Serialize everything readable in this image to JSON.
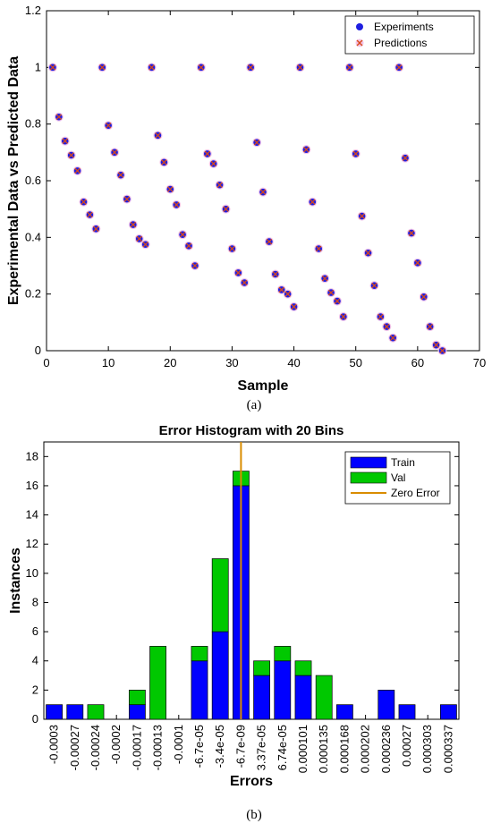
{
  "chart_data": [
    {
      "type": "scatter",
      "caption": "(a)",
      "title": "",
      "xlabel": "Sample",
      "ylabel": "Experimental Data vs Predicted Data",
      "xlim": [
        0,
        70
      ],
      "ylim": [
        0,
        1.2
      ],
      "xticks": [
        "0",
        "10",
        "20",
        "30",
        "40",
        "50",
        "60",
        "70"
      ],
      "yticks": [
        "0",
        "0.2",
        "0.4",
        "0.6",
        "0.8",
        "1",
        "1.2"
      ],
      "grid": false,
      "legend_position": "top-right",
      "colors": {
        "experiments": "#1f1fe0",
        "predictions": "#d94a1a",
        "predictions_halo": "#f2c4e8"
      },
      "series": [
        {
          "name": "Experiments",
          "marker": "circle",
          "x": [
            1,
            2,
            3,
            4,
            5,
            6,
            7,
            8,
            9,
            10,
            11,
            12,
            13,
            14,
            15,
            16,
            17,
            18,
            19,
            20,
            21,
            22,
            23,
            24,
            25,
            26,
            27,
            28,
            29,
            30,
            31,
            32,
            33,
            34,
            35,
            36,
            37,
            38,
            39,
            40,
            41,
            42,
            43,
            44,
            45,
            46,
            47,
            48,
            49,
            50,
            51,
            52,
            53,
            54,
            55,
            56,
            57,
            58,
            59,
            60,
            61,
            62,
            63,
            64
          ],
          "y": [
            1.0,
            0.825,
            0.74,
            0.69,
            0.635,
            0.525,
            0.48,
            0.43,
            1.0,
            0.795,
            0.7,
            0.62,
            0.535,
            0.445,
            0.395,
            0.375,
            1.0,
            0.76,
            0.665,
            0.57,
            0.515,
            0.41,
            0.37,
            0.3,
            1.0,
            0.695,
            0.66,
            0.585,
            0.5,
            0.36,
            0.275,
            0.24,
            1.0,
            0.735,
            0.56,
            0.385,
            0.27,
            0.215,
            0.2,
            0.155,
            1.0,
            0.71,
            0.525,
            0.36,
            0.255,
            0.205,
            0.175,
            0.12,
            1.0,
            0.695,
            0.475,
            0.345,
            0.23,
            0.12,
            0.085,
            0.045,
            1.0,
            0.68,
            0.415,
            0.31,
            0.19,
            0.085,
            0.02,
            0.0
          ]
        },
        {
          "name": "Predictions",
          "marker": "x",
          "x": [
            1,
            2,
            3,
            4,
            5,
            6,
            7,
            8,
            9,
            10,
            11,
            12,
            13,
            14,
            15,
            16,
            17,
            18,
            19,
            20,
            21,
            22,
            23,
            24,
            25,
            26,
            27,
            28,
            29,
            30,
            31,
            32,
            33,
            34,
            35,
            36,
            37,
            38,
            39,
            40,
            41,
            42,
            43,
            44,
            45,
            46,
            47,
            48,
            49,
            50,
            51,
            52,
            53,
            54,
            55,
            56,
            57,
            58,
            59,
            60,
            61,
            62,
            63,
            64
          ],
          "y": [
            1.0,
            0.825,
            0.74,
            0.69,
            0.635,
            0.525,
            0.48,
            0.43,
            1.0,
            0.795,
            0.7,
            0.62,
            0.535,
            0.445,
            0.395,
            0.375,
            1.0,
            0.76,
            0.665,
            0.57,
            0.515,
            0.41,
            0.37,
            0.3,
            1.0,
            0.695,
            0.66,
            0.585,
            0.5,
            0.36,
            0.275,
            0.24,
            1.0,
            0.735,
            0.56,
            0.385,
            0.27,
            0.215,
            0.2,
            0.155,
            1.0,
            0.71,
            0.525,
            0.36,
            0.255,
            0.205,
            0.175,
            0.12,
            1.0,
            0.695,
            0.475,
            0.345,
            0.23,
            0.12,
            0.085,
            0.045,
            1.0,
            0.68,
            0.415,
            0.31,
            0.19,
            0.085,
            0.02,
            0.0
          ]
        }
      ]
    },
    {
      "type": "bar",
      "stacked": true,
      "caption": "(b)",
      "title": "Error Histogram with 20 Bins",
      "xlabel": "Errors",
      "ylabel": "Instances",
      "ylim": [
        0,
        19
      ],
      "yticks": [
        "0",
        "2",
        "4",
        "6",
        "8",
        "10",
        "12",
        "14",
        "16",
        "18"
      ],
      "grid": false,
      "legend_position": "top-right",
      "categories": [
        "-0.0003",
        "-0.00027",
        "-0.00024",
        "-0.0002",
        "-0.00017",
        "-0.00013",
        "-0.0001",
        "-6.7e-05",
        "-3.4e-05",
        "-6.7e-09",
        "3.37e-05",
        "6.74e-05",
        "0.000101",
        "0.000135",
        "0.000168",
        "0.000202",
        "0.000236",
        "0.00027",
        "0.000303",
        "0.000337"
      ],
      "series": [
        {
          "name": "Train",
          "color": "#0000ff",
          "values": [
            1,
            1,
            0,
            0,
            1,
            0,
            0,
            4,
            6,
            16,
            3,
            4,
            3,
            0,
            1,
            0,
            2,
            1,
            0,
            1
          ]
        },
        {
          "name": "Val",
          "color": "#00c800",
          "values": [
            0,
            0,
            1,
            0,
            1,
            5,
            0,
            1,
            5,
            1,
            1,
            1,
            1,
            3,
            0,
            0,
            0,
            0,
            0,
            0
          ]
        }
      ],
      "zero_error": {
        "name": "Zero Error",
        "category_index": 9,
        "color": "#d98c00"
      }
    }
  ]
}
